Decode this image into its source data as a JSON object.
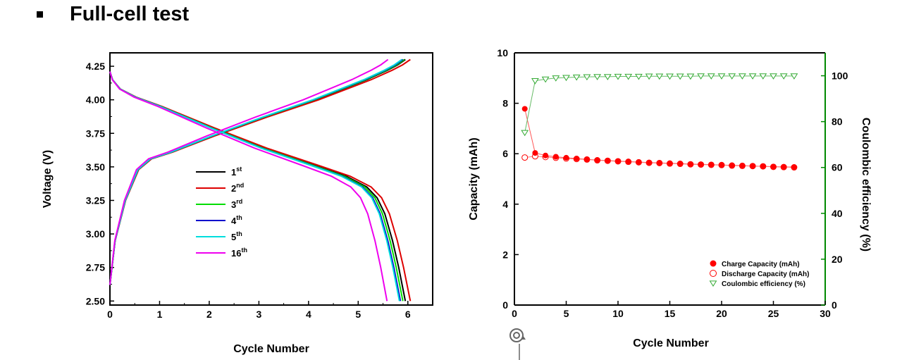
{
  "heading": {
    "bullet": "▪",
    "text": "Full-cell test"
  },
  "chart_data": [
    {
      "type": "line",
      "xlabel": "Cycle Number",
      "ylabel": "Voltage (V)",
      "xlim": [
        0,
        6.5
      ],
      "ylim": [
        2.47,
        4.35
      ],
      "x_ticks": [
        "0",
        "1",
        "2",
        "3",
        "4",
        "5",
        "6"
      ],
      "y_ticks": [
        "2.50",
        "2.75",
        "3.00",
        "3.25",
        "3.50",
        "3.75",
        "4.00",
        "4.25"
      ],
      "legend_position": "center",
      "series": [
        {
          "label": "1",
          "sup": "st",
          "color": "#000000",
          "end": 5.95,
          "charge_end": 5.95
        },
        {
          "label": "2",
          "sup": "nd",
          "color": "#dd0000",
          "end": 6.05,
          "charge_end": 6.05
        },
        {
          "label": "3",
          "sup": "rd",
          "color": "#00dd00",
          "end": 5.9,
          "charge_end": 5.93
        },
        {
          "label": "4",
          "sup": "th",
          "color": "#0000cc",
          "end": 5.85,
          "charge_end": 5.9
        },
        {
          "label": "5",
          "sup": "th",
          "color": "#00dddd",
          "end": 5.83,
          "charge_end": 5.88
        },
        {
          "label": "16",
          "sup": "th",
          "color": "#ee00ee",
          "end": 5.58,
          "charge_end": 5.6
        }
      ],
      "charge_profile": [
        [
          0.0,
          2.62
        ],
        [
          0.1,
          2.95
        ],
        [
          0.3,
          3.25
        ],
        [
          0.55,
          3.48
        ],
        [
          0.8,
          3.56
        ],
        [
          1.2,
          3.61
        ],
        [
          2.0,
          3.73
        ],
        [
          3.0,
          3.87
        ],
        [
          4.0,
          4.0
        ],
        [
          5.0,
          4.15
        ],
        [
          5.4,
          4.22
        ],
        [
          5.6,
          4.26
        ],
        [
          5.75,
          4.3
        ]
      ],
      "discharge_profile": [
        [
          0.0,
          4.21
        ],
        [
          0.05,
          4.15
        ],
        [
          0.2,
          4.08
        ],
        [
          0.5,
          4.02
        ],
        [
          1.0,
          3.95
        ],
        [
          2.0,
          3.79
        ],
        [
          3.0,
          3.64
        ],
        [
          4.0,
          3.51
        ],
        [
          4.6,
          3.43
        ],
        [
          5.0,
          3.35
        ],
        [
          5.2,
          3.27
        ],
        [
          5.35,
          3.15
        ],
        [
          5.5,
          2.95
        ],
        [
          5.62,
          2.75
        ],
        [
          5.75,
          2.5
        ]
      ]
    },
    {
      "type": "scatter",
      "xlabel": "Cycle Number",
      "ylabel": "Capacity (mAh)",
      "ylabel_right": "Coulombic efficiency (%)",
      "xlim": [
        0,
        30
      ],
      "ylim": [
        0,
        10
      ],
      "ylim_right": [
        0,
        110
      ],
      "x_ticks": [
        "0",
        "5",
        "10",
        "15",
        "20",
        "25",
        "30"
      ],
      "y_ticks": [
        "0",
        "2",
        "4",
        "6",
        "8",
        "10"
      ],
      "y_ticks_right": [
        "0",
        "20",
        "40",
        "60",
        "80",
        "100"
      ],
      "legend_position": "bottom-right",
      "colors": {
        "charge": "#ff0000",
        "discharge": "#ff0000",
        "efficiency": "#33aa33",
        "right_axis": "#008800"
      },
      "x": [
        1,
        2,
        3,
        4,
        5,
        6,
        7,
        8,
        9,
        10,
        11,
        12,
        13,
        14,
        15,
        16,
        17,
        18,
        19,
        20,
        21,
        22,
        23,
        24,
        25,
        26,
        27
      ],
      "series": [
        {
          "name": "Charge Capacity (mAh)",
          "marker": "filled-circle",
          "values": [
            7.78,
            6.03,
            5.93,
            5.88,
            5.84,
            5.81,
            5.78,
            5.75,
            5.73,
            5.71,
            5.69,
            5.67,
            5.65,
            5.64,
            5.62,
            5.61,
            5.59,
            5.58,
            5.57,
            5.55,
            5.54,
            5.53,
            5.51,
            5.5,
            5.49,
            5.48,
            5.47
          ]
        },
        {
          "name": "Discharge Capacity (mAh)",
          "marker": "open-circle",
          "values": [
            5.85,
            5.9,
            5.87,
            5.84,
            5.81,
            5.79,
            5.77,
            5.74,
            5.72,
            5.7,
            5.68,
            5.66,
            5.64,
            5.63,
            5.61,
            5.6,
            5.58,
            5.57,
            5.56,
            5.55,
            5.53,
            5.52,
            5.51,
            5.5,
            5.48,
            5.47,
            5.46
          ]
        },
        {
          "name": "Coulombic efficiency (%)",
          "marker": "open-triangle-down",
          "axis": "right",
          "values": [
            75.2,
            97.8,
            98.5,
            99.0,
            99.2,
            99.4,
            99.5,
            99.6,
            99.6,
            99.7,
            99.7,
            99.7,
            99.8,
            99.8,
            99.8,
            99.8,
            99.8,
            99.9,
            99.9,
            99.9,
            99.9,
            99.9,
            99.9,
            99.9,
            99.9,
            99.9,
            99.9
          ]
        }
      ]
    }
  ]
}
